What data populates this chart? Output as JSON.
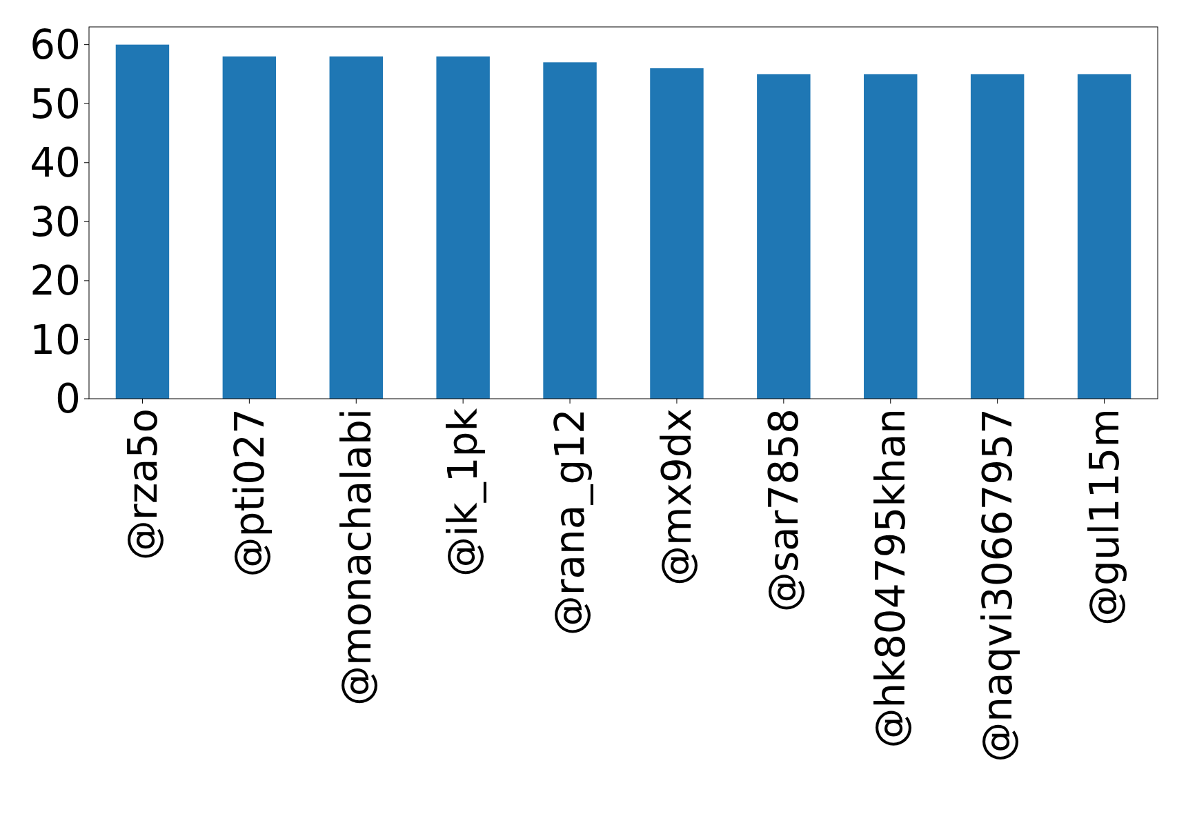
{
  "chart_data": {
    "type": "bar",
    "categories": [
      "@rza5o",
      "@pti027",
      "@monachalabi",
      "@ik_1pk",
      "@rana_g12",
      "@mx9dx",
      "@sar7858",
      "@hk804795khan",
      "@naqvi30667957",
      "@gul115m"
    ],
    "values": [
      60,
      58,
      58,
      58,
      57,
      56,
      55,
      55,
      55,
      55
    ],
    "color": "#1f77b4",
    "ylim": [
      0,
      63
    ],
    "yticks": [
      0,
      10,
      20,
      30,
      40,
      50,
      60
    ]
  }
}
